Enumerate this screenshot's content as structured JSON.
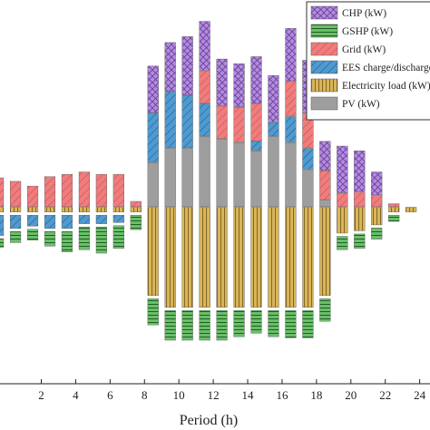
{
  "chart_data": {
    "type": "bar",
    "stacked": true,
    "title": "",
    "xlabel": "Period (h)",
    "ylabel": "",
    "xlim": [
      -0.4,
      24.6
    ],
    "ylim": [
      -150,
      170
    ],
    "x_ticks": [
      2,
      4,
      6,
      8,
      10,
      12,
      14,
      16,
      18,
      20,
      22,
      24
    ],
    "x": [
      -0.5,
      0.5,
      1.5,
      2.5,
      3.5,
      4.5,
      5.5,
      6.5,
      7.5,
      8.5,
      9.5,
      10.5,
      11.5,
      12.5,
      13.5,
      14.5,
      15.5,
      16.5,
      17.5,
      18.5,
      19.5,
      20.5,
      21.5,
      22.5,
      23.5
    ],
    "legend": {
      "position": "top-right"
    },
    "series": [
      {
        "name": "CHP (kW)",
        "color": "#b38cdc",
        "pattern": "crosshatch",
        "values": [
          0,
          0,
          0,
          0,
          0,
          0,
          0,
          0,
          0,
          40,
          42,
          50,
          42,
          40,
          37,
          40,
          40,
          45,
          45,
          25,
          40,
          35,
          20,
          0,
          0
        ]
      },
      {
        "name": "GSHP (kW)",
        "color": "#6abf69",
        "pattern": "horizontal",
        "values": [
          -10,
          -12,
          -12,
          -15,
          -20,
          -22,
          -25,
          -22,
          -15,
          -25,
          -28,
          -28,
          -28,
          -28,
          -25,
          -22,
          -25,
          -26,
          -26,
          -22,
          -14,
          -15,
          -12,
          -8,
          0
        ]
      },
      {
        "name": "Grid (kW)",
        "color": "#f07d7d",
        "pattern": "diagonal",
        "values": [
          25,
          22,
          18,
          26,
          28,
          30,
          28,
          28,
          5,
          0,
          0,
          0,
          28,
          28,
          30,
          32,
          0,
          30,
          30,
          25,
          12,
          13,
          10,
          3,
          0
        ]
      },
      {
        "name": "EES charge/discharge (kW)",
        "color": "#4f9ad0",
        "pattern": "diagonal",
        "values": [
          -20,
          -14,
          -12,
          -14,
          -14,
          -10,
          -10,
          -9,
          0,
          42,
          48,
          45,
          28,
          0,
          0,
          8,
          12,
          22,
          18,
          0,
          0,
          0,
          0,
          0,
          0
        ]
      },
      {
        "name": "Electricity load (kW)",
        "color": "#d8b55a",
        "pattern": "vertical",
        "values": [
          -4,
          -4,
          -4,
          -4,
          -4,
          -4,
          -4,
          -4,
          -4,
          -75,
          -85,
          -85,
          -85,
          -85,
          -85,
          -85,
          -85,
          -85,
          -85,
          -75,
          -22,
          -20,
          -15,
          -4,
          -4
        ]
      },
      {
        "name": "PV (kW)",
        "color": "#9e9e9e",
        "pattern": "solid",
        "values": [
          0,
          0,
          0,
          0,
          0,
          0,
          0,
          0,
          0,
          38,
          50,
          50,
          60,
          58,
          55,
          48,
          60,
          55,
          32,
          6,
          0,
          0,
          0,
          0,
          0
        ]
      }
    ]
  }
}
